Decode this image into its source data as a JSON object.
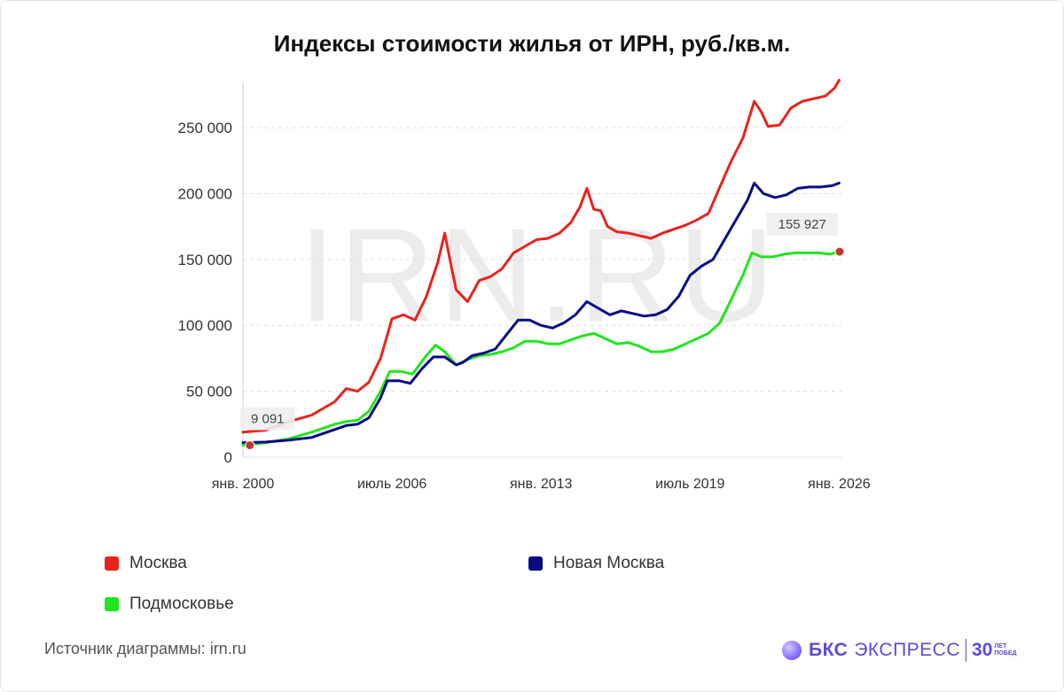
{
  "title": "Индексы стоимости жилья от ИРН, руб./кв.м.",
  "watermark": "IRN.RU",
  "source": "Источник диаграммы: irn.ru",
  "brand": {
    "name_bold": "БКС",
    "name_rest": "ЭКСПРЕСС",
    "anniversary": "30",
    "anniversary_line1": "ЛЕТ",
    "anniversary_line2": "ПОБЕД",
    "accent_color": "#5a4bd6"
  },
  "chart_data": {
    "type": "line",
    "title": "Индексы стоимости жилья от ИРН, руб./кв.м.",
    "xlabel": "",
    "ylabel": "",
    "xlim": [
      2000.0,
      2026.1
    ],
    "ylim": [
      0,
      285000
    ],
    "yticks": [
      0,
      50000,
      100000,
      150000,
      200000,
      250000
    ],
    "ytick_labels": [
      "0",
      "50 000",
      "100 000",
      "150 000",
      "200 000",
      "250 000"
    ],
    "xticks": [
      2000.0,
      2006.5,
      2013.0,
      2019.5,
      2026.0
    ],
    "xtick_labels": [
      "янв. 2000",
      "июль 2006",
      "янв. 2013",
      "июль 2019",
      "янв. 2026"
    ],
    "grid": true,
    "legend_position": "bottom",
    "annotations": [
      {
        "label": "9 091",
        "series": "Подмосковье",
        "x": 2000.3,
        "y": 9091
      },
      {
        "label": "155 927",
        "series": "Подмосковье",
        "x": 2026.1,
        "y": 155927
      }
    ],
    "series": [
      {
        "name": "Москва",
        "color": "#e8231e",
        "x": [
          2000.0,
          2001.0,
          2002.0,
          2003.0,
          2004.0,
          2004.5,
          2005.0,
          2005.5,
          2006.0,
          2006.5,
          2007.0,
          2007.5,
          2008.0,
          2008.5,
          2008.8,
          2009.0,
          2009.3,
          2009.8,
          2010.3,
          2010.8,
          2011.3,
          2011.8,
          2012.3,
          2012.8,
          2013.3,
          2013.8,
          2014.3,
          2014.7,
          2015.0,
          2015.3,
          2015.6,
          2015.9,
          2016.3,
          2016.8,
          2017.3,
          2017.8,
          2018.3,
          2018.8,
          2019.3,
          2019.8,
          2020.3,
          2020.8,
          2021.3,
          2021.8,
          2022.3,
          2022.6,
          2022.9,
          2023.4,
          2023.9,
          2024.4,
          2024.9,
          2025.4,
          2025.8,
          2026.0
        ],
        "y": [
          19000,
          20500,
          27000,
          32000,
          42000,
          52000,
          50000,
          57000,
          75000,
          105000,
          108000,
          104000,
          122000,
          148000,
          170000,
          152000,
          127000,
          118000,
          134000,
          137000,
          143000,
          155000,
          160000,
          165000,
          166000,
          170000,
          178000,
          190000,
          204000,
          188000,
          187000,
          175000,
          171000,
          170000,
          168000,
          166000,
          170000,
          173000,
          176000,
          180000,
          185000,
          205000,
          225000,
          242000,
          270000,
          262000,
          251000,
          252000,
          265000,
          270000,
          272000,
          274000,
          280000,
          286000
        ]
      },
      {
        "name": "Новая Москва",
        "color": "#0b0b85",
        "x": [
          2000.0,
          2001.0,
          2002.0,
          2003.0,
          2004.0,
          2004.5,
          2005.0,
          2005.5,
          2006.0,
          2006.3,
          2006.8,
          2007.3,
          2007.8,
          2008.3,
          2008.8,
          2009.3,
          2009.6,
          2010.0,
          2010.5,
          2011.0,
          2011.5,
          2012.0,
          2012.5,
          2013.0,
          2013.5,
          2014.0,
          2014.5,
          2015.0,
          2015.5,
          2016.0,
          2016.5,
          2017.0,
          2017.5,
          2018.0,
          2018.5,
          2019.0,
          2019.5,
          2020.0,
          2020.5,
          2021.0,
          2021.5,
          2022.0,
          2022.3,
          2022.7,
          2023.2,
          2023.7,
          2024.2,
          2024.7,
          2025.2,
          2025.7,
          2026.0
        ],
        "y": [
          11000,
          11500,
          13000,
          15000,
          21000,
          24000,
          25000,
          30000,
          45000,
          58000,
          58000,
          56000,
          67000,
          76000,
          76000,
          70000,
          72000,
          77000,
          79000,
          82000,
          93000,
          104000,
          104000,
          100000,
          98000,
          102000,
          108000,
          118000,
          113000,
          108000,
          111000,
          109000,
          107000,
          108000,
          112000,
          122000,
          138000,
          145000,
          150000,
          165000,
          180000,
          195000,
          208000,
          200000,
          197000,
          199000,
          204000,
          205000,
          205000,
          206000,
          208000
        ]
      },
      {
        "name": "Подмосковье",
        "color": "#22e51e",
        "x": [
          2000.0,
          2001.0,
          2002.0,
          2003.0,
          2004.0,
          2004.5,
          2005.0,
          2005.5,
          2006.0,
          2006.4,
          2006.9,
          2007.4,
          2007.9,
          2008.4,
          2008.8,
          2009.3,
          2009.8,
          2010.3,
          2010.8,
          2011.3,
          2011.8,
          2012.3,
          2012.8,
          2013.3,
          2013.8,
          2014.3,
          2014.8,
          2015.3,
          2015.8,
          2016.3,
          2016.8,
          2017.3,
          2017.8,
          2018.3,
          2018.8,
          2019.3,
          2019.8,
          2020.3,
          2020.8,
          2021.3,
          2021.8,
          2022.2,
          2022.6,
          2023.1,
          2023.6,
          2024.1,
          2024.6,
          2025.1,
          2025.6,
          2026.0
        ],
        "y": [
          9091,
          11000,
          14000,
          19000,
          25000,
          27000,
          28000,
          35000,
          50000,
          65000,
          65000,
          63000,
          75000,
          85000,
          80000,
          70000,
          74000,
          77000,
          78000,
          80000,
          83000,
          88000,
          88000,
          86000,
          86000,
          89000,
          92000,
          94000,
          90000,
          86000,
          87000,
          84000,
          80000,
          80000,
          82000,
          86000,
          90000,
          94000,
          102000,
          120000,
          138000,
          155000,
          152000,
          152000,
          154000,
          155000,
          155000,
          155000,
          154000,
          155927
        ]
      }
    ]
  }
}
